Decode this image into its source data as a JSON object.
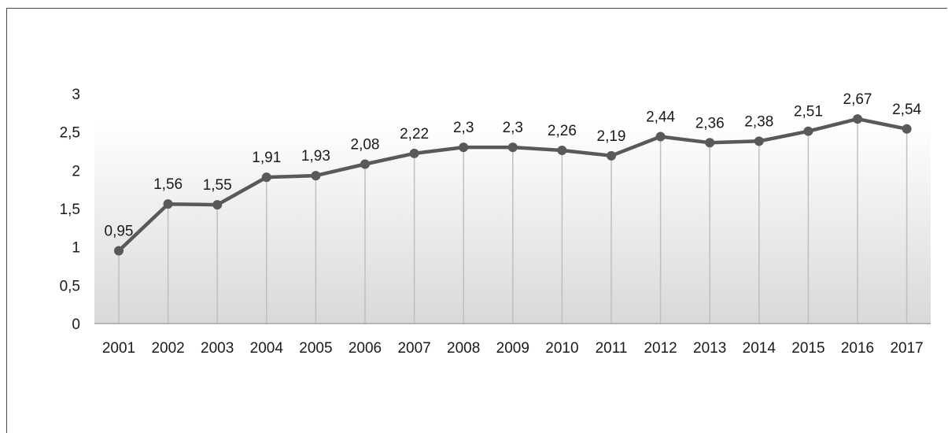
{
  "chart_data": {
    "type": "line",
    "title": "",
    "xlabel": "",
    "ylabel": "",
    "categories": [
      "2001",
      "2002",
      "2003",
      "2004",
      "2005",
      "2006",
      "2007",
      "2008",
      "2009",
      "2010",
      "2011",
      "2012",
      "2013",
      "2014",
      "2015",
      "2016",
      "2017"
    ],
    "series": [
      {
        "values": [
          0.95,
          1.56,
          1.55,
          1.91,
          1.93,
          2.08,
          2.22,
          2.3,
          2.3,
          2.26,
          2.19,
          2.44,
          2.36,
          2.38,
          2.51,
          2.67,
          2.54
        ],
        "labels": [
          "0,95",
          "1,56",
          "1,55",
          "1,91",
          "1,93",
          "2,08",
          "2,22",
          "2,3",
          "2,3",
          "2,26",
          "2,19",
          "2,44",
          "2,36",
          "2,38",
          "2,51",
          "2,67",
          "2,54"
        ]
      }
    ],
    "y_ticks": [
      "0",
      "0,5",
      "1",
      "1,5",
      "2",
      "2,5",
      "3"
    ],
    "ylim": [
      0,
      3
    ],
    "grid": "vertical",
    "legend": "none",
    "colors": {
      "line": "#595959",
      "marker": "#595959",
      "gridline": "#bfbfbf",
      "plot_background_top": "#ffffff",
      "plot_background_bottom": "#d9d9d9",
      "axis": "#a6a6a6"
    }
  }
}
